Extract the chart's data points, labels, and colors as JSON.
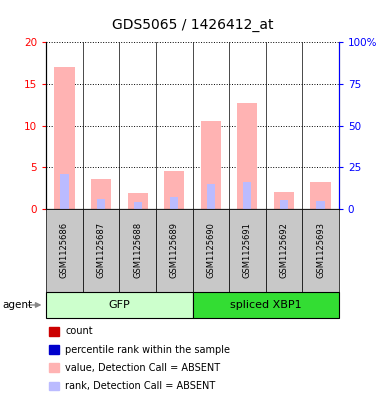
{
  "title": "GDS5065 / 1426412_at",
  "samples": [
    "GSM1125686",
    "GSM1125687",
    "GSM1125688",
    "GSM1125689",
    "GSM1125690",
    "GSM1125691",
    "GSM1125692",
    "GSM1125693"
  ],
  "value_absent": [
    17.0,
    3.6,
    1.9,
    4.5,
    10.6,
    12.7,
    2.0,
    3.2
  ],
  "rank_absent": [
    4.2,
    1.2,
    0.9,
    1.5,
    3.0,
    3.3,
    1.1,
    1.0
  ],
  "ylim_left": [
    0,
    20
  ],
  "ylim_right": [
    0,
    100
  ],
  "yticks_left": [
    0,
    5,
    10,
    15,
    20
  ],
  "yticks_right": [
    0,
    25,
    50,
    75,
    100
  ],
  "ytick_labels_right": [
    "0",
    "25",
    "50",
    "75",
    "100%"
  ],
  "color_value_absent": "#FFB3B3",
  "color_rank_absent": "#BBBBFF",
  "color_count": "#CC0000",
  "color_rank": "#0000CC",
  "gfp_color": "#CCFFCC",
  "xbp1_color": "#33DD33",
  "legend_items": [
    {
      "color": "#CC0000",
      "label": "count"
    },
    {
      "color": "#0000CC",
      "label": "percentile rank within the sample"
    },
    {
      "color": "#FFB3B3",
      "label": "value, Detection Call = ABSENT"
    },
    {
      "color": "#BBBBFF",
      "label": "rank, Detection Call = ABSENT"
    }
  ],
  "fig_width": 3.85,
  "fig_height": 3.93,
  "dpi": 100
}
